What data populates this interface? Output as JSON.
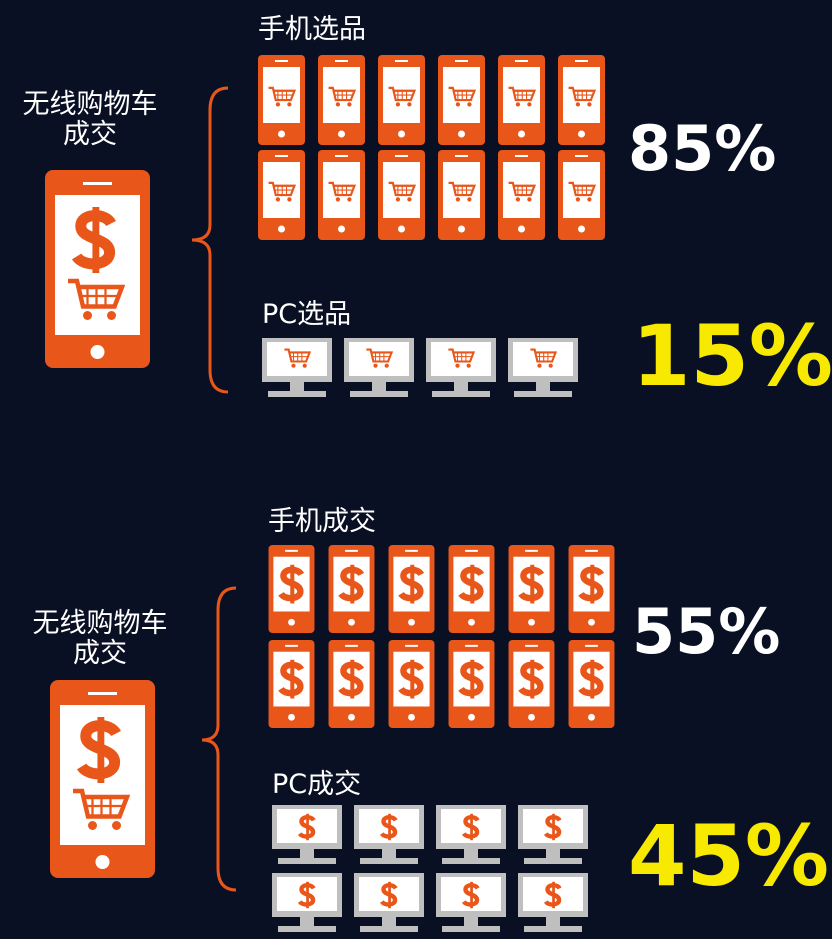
{
  "sections": [
    {
      "label": [
        "无线购物车",
        "成交"
      ],
      "groups": [
        {
          "title": "手机选品",
          "percent": "85%"
        },
        {
          "title": "PC选品",
          "percent": "15%"
        }
      ]
    },
    {
      "label": [
        "无线购物车",
        "成交"
      ],
      "groups": [
        {
          "title": "手机成交",
          "percent": "55%"
        },
        {
          "title": "PC成交",
          "percent": "45%"
        }
      ]
    }
  ]
}
